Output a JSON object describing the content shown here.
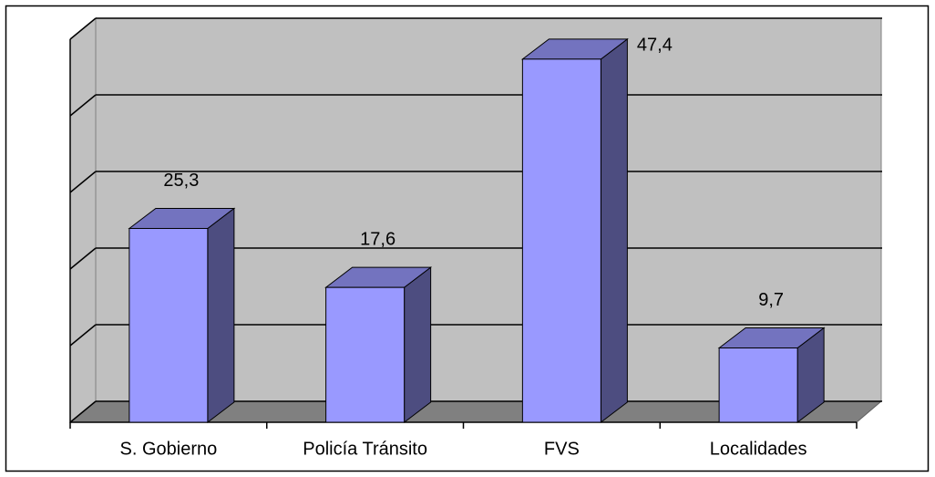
{
  "chart_data": {
    "type": "bar3d",
    "categories": [
      "S. Gobierno",
      "Policía Tránsito",
      "FVS",
      "Localidades"
    ],
    "values": [
      25.3,
      17.6,
      47.4,
      9.7
    ],
    "value_labels": [
      "25,3",
      "17,6",
      "47,4",
      "9,7"
    ],
    "color": "#9999ff",
    "ylim": [
      0,
      50
    ],
    "yticks": [
      0,
      10,
      20,
      30,
      40,
      50
    ],
    "grid": true
  }
}
